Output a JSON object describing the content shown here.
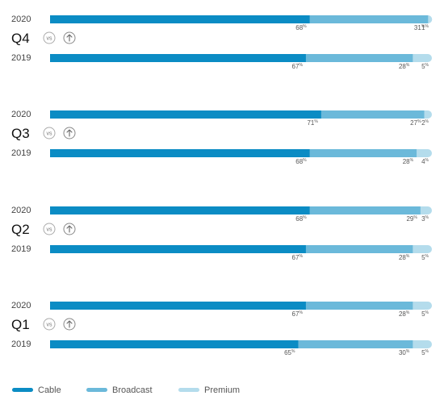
{
  "chart_data": {
    "type": "bar",
    "orientation": "horizontal",
    "stacked": true,
    "percent_suffix": "%",
    "comparison_label": "vs",
    "series": [
      {
        "name": "Cable",
        "color": "#0b8cc4"
      },
      {
        "name": "Broadcast",
        "color": "#6bb9da"
      },
      {
        "name": "Premium",
        "color": "#b4dcec"
      }
    ],
    "groups": [
      {
        "quarter": "Q4",
        "rows": [
          {
            "year": "2020",
            "values": [
              68,
              31,
              1
            ]
          },
          {
            "year": "2019",
            "values": [
              67,
              28,
              5
            ]
          }
        ]
      },
      {
        "quarter": "Q3",
        "rows": [
          {
            "year": "2020",
            "values": [
              71,
              27,
              2
            ]
          },
          {
            "year": "2019",
            "values": [
              68,
              28,
              4
            ]
          }
        ]
      },
      {
        "quarter": "Q2",
        "rows": [
          {
            "year": "2020",
            "values": [
              68,
              29,
              3
            ]
          },
          {
            "year": "2019",
            "values": [
              67,
              28,
              5
            ]
          }
        ]
      },
      {
        "quarter": "Q1",
        "rows": [
          {
            "year": "2020",
            "values": [
              67,
              28,
              5
            ]
          },
          {
            "year": "2019",
            "values": [
              65,
              30,
              5
            ]
          }
        ]
      }
    ],
    "legend": {
      "position": "bottom-left",
      "entries": [
        "Cable",
        "Broadcast",
        "Premium"
      ]
    },
    "grid": false
  }
}
